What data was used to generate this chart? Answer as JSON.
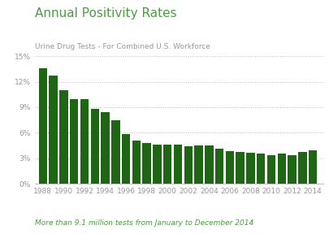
{
  "title": "Annual Positivity Rates",
  "subtitle": "Urine Drug Tests - For Combined U.S. Workforce",
  "footnote": "More than 9.1 million tests from January to December 2014",
  "years": [
    1988,
    1989,
    1990,
    1991,
    1992,
    1993,
    1994,
    1995,
    1996,
    1997,
    1998,
    1999,
    2000,
    2001,
    2002,
    2003,
    2004,
    2005,
    2006,
    2007,
    2008,
    2009,
    2010,
    2011,
    2012,
    2013,
    2014
  ],
  "values": [
    13.6,
    12.7,
    11.0,
    9.9,
    9.9,
    8.8,
    8.4,
    7.5,
    5.8,
    5.1,
    4.8,
    4.6,
    4.6,
    4.6,
    4.4,
    4.5,
    4.5,
    4.1,
    3.8,
    3.7,
    3.6,
    3.5,
    3.4,
    3.5,
    3.4,
    3.7,
    3.9
  ],
  "bar_color": "#1e6614",
  "title_color": "#4a9e3f",
  "subtitle_color": "#999999",
  "footnote_color": "#4a9e3f",
  "bg_color": "#ffffff",
  "grid_color": "#bbbbbb",
  "tick_color": "#999999",
  "ylim": [
    0,
    15
  ],
  "ytick_vals": [
    0,
    3,
    6,
    9,
    12,
    15
  ],
  "xtick_labels": [
    "1988",
    "1990",
    "1992",
    "1994",
    "1996",
    "1998",
    "2000",
    "2002",
    "2004",
    "2006",
    "2008",
    "2010",
    "2012",
    "2014"
  ],
  "title_fontsize": 11,
  "subtitle_fontsize": 6.5,
  "tick_fontsize": 6.5,
  "footnote_fontsize": 6.5
}
